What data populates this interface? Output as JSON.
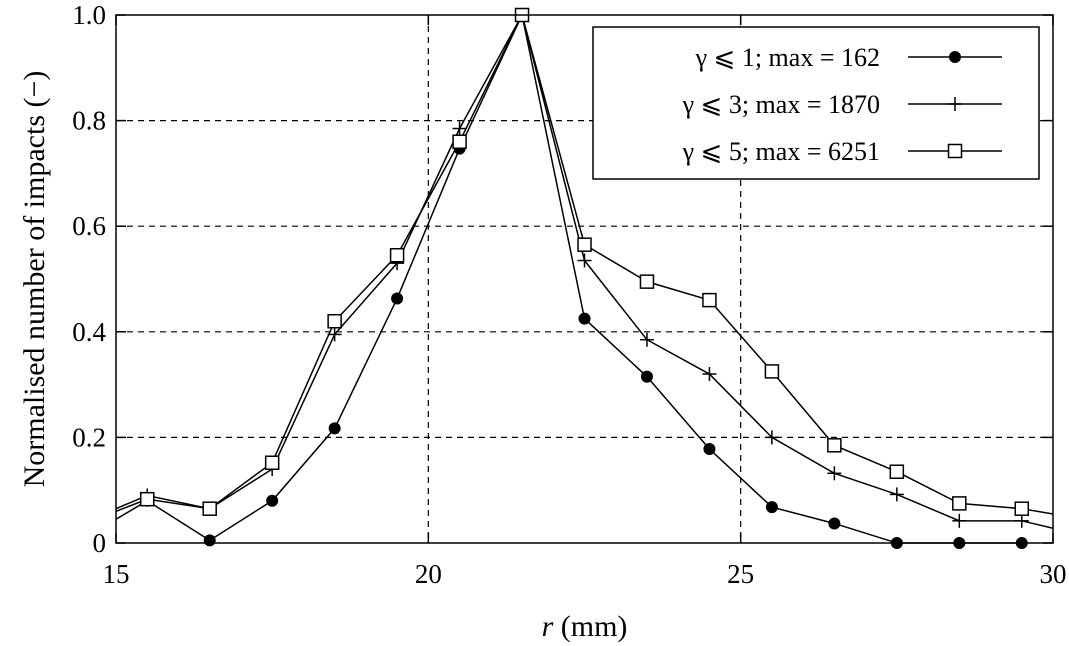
{
  "chart_data": {
    "type": "line",
    "xlabel_var": "r",
    "xlabel_unit": " (mm)",
    "ylabel": "Normalised number of impacts (−)",
    "xlim": [
      15,
      30
    ],
    "ylim": [
      0,
      1
    ],
    "xticks": [
      15,
      20,
      25,
      30
    ],
    "xtick_labels": [
      "15",
      "20",
      "25",
      "30"
    ],
    "yticks": [
      0,
      0.2,
      0.4,
      0.6,
      0.8,
      1.0
    ],
    "ytick_labels": [
      "0",
      "0.2",
      "0.4",
      "0.6",
      "0.8",
      "1.0"
    ],
    "grid": true,
    "legend_position": "top-right",
    "series": [
      {
        "name": "γ ⩽ 1; max = 162",
        "marker": "filled-circle",
        "x": [
          15.5,
          16.5,
          17.5,
          18.5,
          19.5,
          20.5,
          21.5,
          22.5,
          23.5,
          24.5,
          25.5,
          26.5,
          27.5,
          28.5,
          29.5
        ],
        "y": [
          0.08,
          0.005,
          0.08,
          0.217,
          0.463,
          0.747,
          1.0,
          0.425,
          0.315,
          0.178,
          0.068,
          0.037,
          0.0,
          0.0,
          0.0
        ],
        "line_x_start": 15.0,
        "line_y_start": 0.045
      },
      {
        "name": "γ ⩽ 3; max = 1870",
        "marker": "plus",
        "x": [
          15.5,
          16.5,
          17.5,
          18.5,
          19.5,
          20.5,
          21.5,
          22.5,
          23.5,
          24.5,
          25.5,
          26.5,
          27.5,
          28.5,
          29.5
        ],
        "y": [
          0.09,
          0.065,
          0.14,
          0.395,
          0.53,
          0.785,
          1.0,
          0.535,
          0.385,
          0.32,
          0.2,
          0.132,
          0.092,
          0.042,
          0.042
        ],
        "line_x_start": 15.0,
        "line_y_start": 0.065,
        "line_x_end": 30.0,
        "line_y_end": 0.028
      },
      {
        "name": "γ ⩽ 5; max = 6251",
        "marker": "open-square",
        "x": [
          15.5,
          16.5,
          17.5,
          18.5,
          19.5,
          20.5,
          21.5,
          22.5,
          23.5,
          24.5,
          25.5,
          26.5,
          27.5,
          28.5,
          29.5
        ],
        "y": [
          0.083,
          0.065,
          0.152,
          0.42,
          0.545,
          0.76,
          1.0,
          0.565,
          0.495,
          0.46,
          0.325,
          0.185,
          0.135,
          0.075,
          0.065
        ],
        "line_x_start": 15.0,
        "line_y_start": 0.06,
        "line_x_end": 30.0,
        "line_y_end": 0.055
      }
    ]
  }
}
